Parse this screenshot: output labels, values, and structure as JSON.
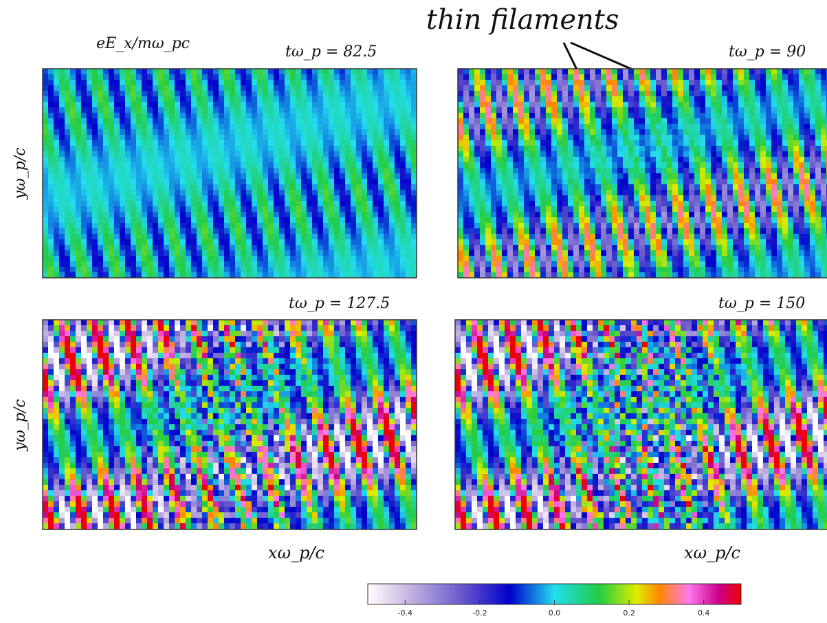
{
  "annotation": {
    "text": "thin filaments"
  },
  "chart_data": {
    "type": "heatmap",
    "colorbar_title": "eE_x/mω_pc",
    "colorbar_ticks": [
      -0.4,
      -0.2,
      0.0,
      0.2,
      0.4
    ],
    "colorbar_tick_labels": [
      "-0.4",
      "-0.2",
      "0.0",
      "0.2",
      "0.4"
    ],
    "colorbar_range": [
      -0.5,
      0.5
    ],
    "panels": [
      {
        "time_label": "tω_p = 82.5",
        "xlabel": "",
        "ylabel": "yω_p/c",
        "amplitude": 0.15,
        "turbulence": 0.0
      },
      {
        "time_label": "tω_p = 90",
        "xlabel": "",
        "ylabel": "",
        "amplitude": 0.35,
        "turbulence": 0.1
      },
      {
        "time_label": "tω_p = 127.5",
        "xlabel": "xω_p/c",
        "ylabel": "yω_p/c",
        "amplitude": 0.6,
        "turbulence": 0.5
      },
      {
        "time_label": "tω_p = 150",
        "xlabel": "xω_p/c",
        "ylabel": "",
        "amplitude": 0.6,
        "turbulence": 0.7
      }
    ]
  }
}
